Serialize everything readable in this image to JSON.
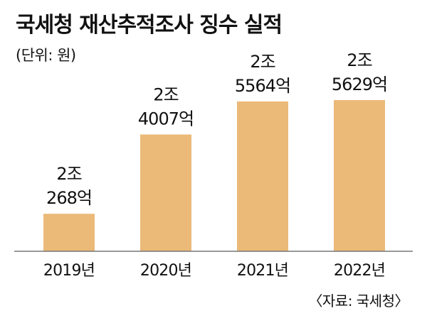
{
  "colors": {
    "bar": "#ebb978",
    "axis": "#777777",
    "text": "#111111"
  },
  "chart_data": {
    "type": "bar",
    "title": "국세청 재산추적조사 징수 실적",
    "unit_label": "(단위: 원)",
    "source": "〈자료: 국세청〉",
    "categories": [
      "2019년",
      "2020년",
      "2021년",
      "2022년"
    ],
    "values": [
      2026800000000,
      2400700000000,
      2556400000000,
      2562900000000
    ],
    "data_labels": [
      [
        "2조",
        "268억"
      ],
      [
        "2조",
        "4007억"
      ],
      [
        "2조",
        "5564억"
      ],
      [
        "2조",
        "5629억"
      ]
    ],
    "xlabel": "",
    "ylabel": "",
    "grid": false,
    "legend": "none"
  }
}
